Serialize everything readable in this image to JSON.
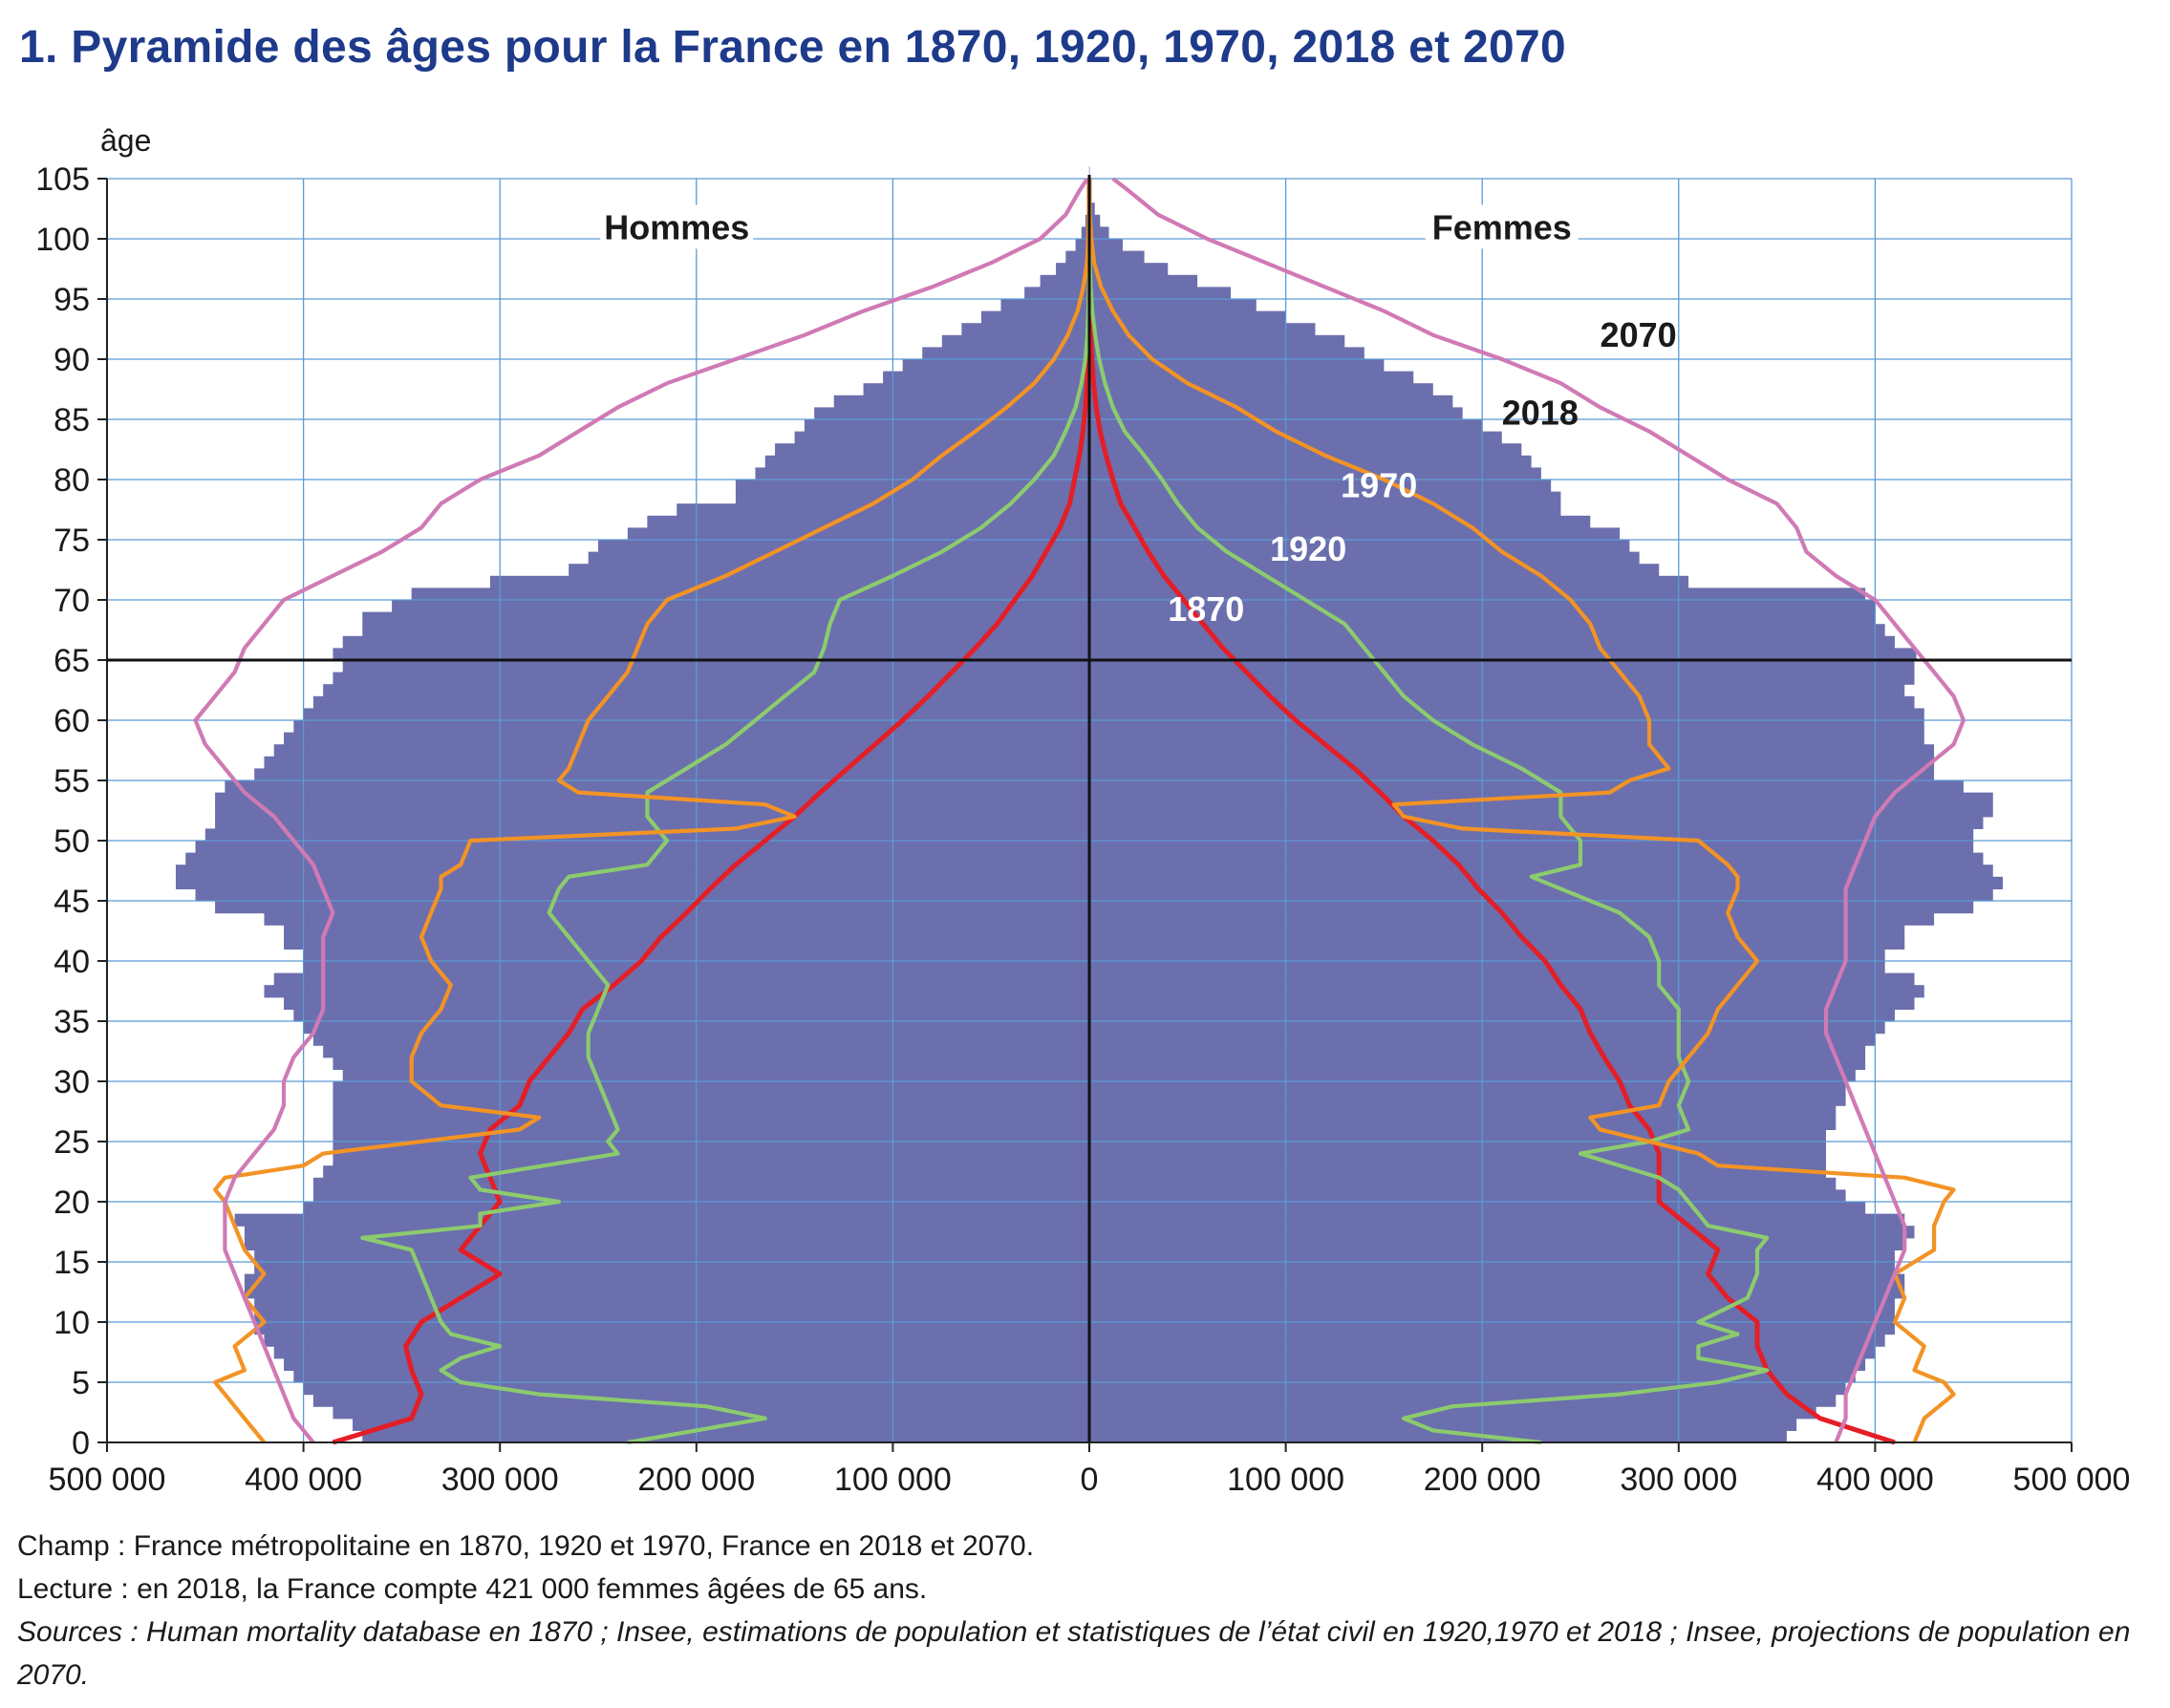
{
  "title": "1. Pyramide des âges pour la France en 1870, 1920, 1970, 2018 et 2070",
  "notes": {
    "champ": "Champ : France métropolitaine en 1870, 1920 et 1970, France en 2018 et 2070.",
    "lecture": "Lecture : en 2018, la France compte 421 000 femmes âgées de 65 ans.",
    "sources": "Sources : Human mortality database en 1870 ; Insee, estimations de population et statistiques de l’état civil en 1920,1970 et 2018 ; Insee, projections de population en 2070."
  },
  "chart_data": {
    "type": "population-pyramid",
    "ylabel": "âge",
    "left_label": "Hommes",
    "right_label": "Femmes",
    "xlim": [
      -500000,
      500000
    ],
    "ylim": [
      0,
      105
    ],
    "x_ticks": [
      -500000,
      -400000,
      -300000,
      -200000,
      -100000,
      0,
      100000,
      200000,
      300000,
      400000,
      500000
    ],
    "x_tick_labels": [
      "500 000",
      "400 000",
      "300 000",
      "200 000",
      "100 000",
      "0",
      "100 000",
      "200 000",
      "300 000",
      "400 000",
      "500 000"
    ],
    "y_ticks": [
      0,
      5,
      10,
      15,
      20,
      25,
      30,
      35,
      40,
      45,
      50,
      55,
      60,
      65,
      70,
      75,
      80,
      85,
      90,
      95,
      100,
      105
    ],
    "grid": true,
    "reference_line_age": 65,
    "colors": {
      "2018": "#6b6fad",
      "1870": "#e41e26",
      "1920": "#8ccb6e",
      "1970": "#f39325",
      "2070": "#d07ab5",
      "grid": "#5b9bd5",
      "title": "#1e3a8a"
    },
    "bars_2018": {
      "name": "2018",
      "ages": [
        0,
        1,
        2,
        3,
        4,
        5,
        6,
        7,
        8,
        9,
        10,
        11,
        12,
        13,
        14,
        15,
        16,
        17,
        18,
        19,
        20,
        21,
        22,
        23,
        24,
        25,
        26,
        27,
        28,
        29,
        30,
        31,
        32,
        33,
        34,
        35,
        36,
        37,
        38,
        39,
        40,
        41,
        42,
        43,
        44,
        45,
        46,
        47,
        48,
        49,
        50,
        51,
        52,
        53,
        54,
        55,
        56,
        57,
        58,
        59,
        60,
        61,
        62,
        63,
        64,
        65,
        66,
        67,
        68,
        69,
        70,
        71,
        72,
        73,
        74,
        75,
        76,
        77,
        78,
        79,
        80,
        81,
        82,
        83,
        84,
        85,
        86,
        87,
        88,
        89,
        90,
        91,
        92,
        93,
        94,
        95,
        96,
        97,
        98,
        99,
        100,
        101,
        102,
        103,
        104,
        105
      ],
      "men": [
        370000,
        375000,
        385000,
        395000,
        400000,
        405000,
        410000,
        415000,
        420000,
        425000,
        425000,
        425000,
        430000,
        430000,
        425000,
        425000,
        430000,
        430000,
        435000,
        400000,
        395000,
        395000,
        390000,
        385000,
        385000,
        385000,
        385000,
        385000,
        385000,
        385000,
        380000,
        385000,
        390000,
        395000,
        400000,
        405000,
        410000,
        420000,
        415000,
        400000,
        400000,
        410000,
        410000,
        420000,
        445000,
        455000,
        465000,
        465000,
        460000,
        455000,
        450000,
        445000,
        445000,
        445000,
        440000,
        425000,
        420000,
        415000,
        410000,
        405000,
        400000,
        395000,
        390000,
        385000,
        380000,
        385000,
        380000,
        370000,
        370000,
        355000,
        345000,
        305000,
        265000,
        255000,
        250000,
        235000,
        225000,
        210000,
        180000,
        180000,
        170000,
        165000,
        160000,
        150000,
        145000,
        140000,
        130000,
        115000,
        105000,
        95000,
        85000,
        75000,
        65000,
        55000,
        45000,
        33000,
        25000,
        17000,
        12000,
        7000,
        4000,
        2000,
        1200,
        600,
        300,
        100
      ],
      "women": [
        355000,
        360000,
        370000,
        380000,
        385000,
        390000,
        395000,
        400000,
        405000,
        410000,
        410000,
        410000,
        415000,
        415000,
        410000,
        410000,
        415000,
        420000,
        415000,
        395000,
        385000,
        380000,
        375000,
        375000,
        375000,
        375000,
        380000,
        380000,
        385000,
        385000,
        390000,
        395000,
        395000,
        400000,
        405000,
        410000,
        420000,
        425000,
        420000,
        405000,
        405000,
        415000,
        415000,
        430000,
        450000,
        460000,
        465000,
        460000,
        455000,
        450000,
        450000,
        455000,
        460000,
        460000,
        445000,
        430000,
        430000,
        430000,
        425000,
        425000,
        425000,
        420000,
        415000,
        420000,
        420000,
        421000,
        410000,
        405000,
        400000,
        400000,
        395000,
        305000,
        290000,
        280000,
        275000,
        270000,
        255000,
        240000,
        240000,
        235000,
        230000,
        225000,
        220000,
        210000,
        200000,
        190000,
        185000,
        175000,
        165000,
        150000,
        140000,
        130000,
        115000,
        100000,
        85000,
        72000,
        55000,
        40000,
        28000,
        17000,
        10000,
        5500,
        2800,
        1200,
        500,
        200
      ]
    },
    "series": [
      {
        "name": "1870",
        "color": "#e41e26",
        "ages": [
          0,
          2,
          4,
          6,
          8,
          10,
          12,
          14,
          16,
          18,
          20,
          22,
          24,
          26,
          28,
          30,
          32,
          34,
          36,
          38,
          40,
          42,
          44,
          46,
          48,
          50,
          52,
          54,
          56,
          58,
          60,
          62,
          64,
          66,
          68,
          70,
          72,
          74,
          76,
          78,
          80,
          82,
          84,
          86,
          88,
          90,
          92,
          94,
          96,
          98,
          100,
          102,
          104,
          105
        ],
        "men": [
          385000,
          345000,
          340000,
          345000,
          348000,
          340000,
          320000,
          300000,
          320000,
          310000,
          300000,
          305000,
          310000,
          305000,
          290000,
          285000,
          275000,
          265000,
          258000,
          242000,
          228000,
          218000,
          205000,
          193000,
          180000,
          165000,
          150000,
          137000,
          123000,
          109000,
          95000,
          82000,
          70000,
          58000,
          47000,
          38000,
          29000,
          22000,
          15000,
          10000,
          7500,
          5000,
          3200,
          2000,
          1200,
          700,
          400,
          200,
          100,
          50,
          20,
          8,
          3,
          0
        ],
        "women": [
          410000,
          372000,
          355000,
          345000,
          340000,
          340000,
          325000,
          315000,
          320000,
          305000,
          290000,
          290000,
          290000,
          285000,
          275000,
          270000,
          262000,
          255000,
          250000,
          240000,
          232000,
          220000,
          210000,
          198000,
          188000,
          175000,
          160000,
          148000,
          135000,
          120000,
          105000,
          92000,
          80000,
          68000,
          58000,
          48000,
          38000,
          30000,
          23000,
          16000,
          12000,
          8500,
          5500,
          3500,
          2200,
          1300,
          700,
          350,
          150,
          60,
          25,
          10,
          3,
          0
        ]
      },
      {
        "name": "1920",
        "color": "#8ccb6e",
        "ages": [
          0,
          1,
          2,
          3,
          4,
          5,
          6,
          7,
          8,
          9,
          10,
          12,
          14,
          16,
          17,
          18,
          19,
          20,
          21,
          22,
          24,
          25,
          26,
          28,
          30,
          32,
          34,
          36,
          38,
          40,
          42,
          44,
          46,
          47,
          48,
          50,
          52,
          54,
          56,
          58,
          60,
          62,
          64,
          66,
          68,
          70,
          72,
          74,
          76,
          78,
          80,
          82,
          84,
          86,
          88,
          90,
          92,
          94,
          96,
          98,
          100,
          102,
          104,
          105
        ],
        "men": [
          235000,
          200000,
          165000,
          195000,
          280000,
          320000,
          330000,
          320000,
          300000,
          325000,
          330000,
          335000,
          340000,
          345000,
          370000,
          310000,
          310000,
          270000,
          310000,
          315000,
          240000,
          245000,
          240000,
          245000,
          250000,
          255000,
          255000,
          250000,
          245000,
          255000,
          265000,
          275000,
          270000,
          265000,
          225000,
          215000,
          225000,
          225000,
          205000,
          185000,
          170000,
          155000,
          140000,
          135000,
          132000,
          127000,
          100000,
          75000,
          55000,
          40000,
          28000,
          18000,
          12000,
          7000,
          4000,
          2000,
          1000,
          500,
          200,
          80,
          30,
          10,
          3,
          0
        ],
        "women": [
          230000,
          175000,
          160000,
          185000,
          270000,
          320000,
          345000,
          310000,
          310000,
          330000,
          310000,
          335000,
          340000,
          340000,
          345000,
          315000,
          310000,
          305000,
          300000,
          290000,
          250000,
          285000,
          305000,
          300000,
          305000,
          300000,
          300000,
          300000,
          290000,
          290000,
          285000,
          270000,
          240000,
          225000,
          250000,
          250000,
          240000,
          240000,
          220000,
          195000,
          175000,
          160000,
          150000,
          140000,
          130000,
          110000,
          90000,
          70000,
          55000,
          45000,
          37000,
          28000,
          18000,
          12000,
          8000,
          5000,
          3000,
          1500,
          700,
          300,
          100,
          40,
          10,
          0
        ]
      },
      {
        "name": "1970",
        "color": "#f39325",
        "ages": [
          0,
          2,
          4,
          5,
          6,
          8,
          10,
          12,
          14,
          16,
          18,
          20,
          21,
          22,
          23,
          24,
          26,
          27,
          28,
          30,
          32,
          34,
          36,
          38,
          40,
          42,
          44,
          46,
          47,
          48,
          50,
          51,
          52,
          53,
          54,
          55,
          56,
          58,
          60,
          62,
          64,
          66,
          68,
          70,
          72,
          74,
          76,
          78,
          80,
          82,
          84,
          86,
          88,
          90,
          92,
          94,
          96,
          98,
          100,
          102,
          104,
          105
        ],
        "men": [
          420000,
          430000,
          440000,
          445000,
          430000,
          435000,
          420000,
          430000,
          420000,
          430000,
          435000,
          440000,
          445000,
          440000,
          400000,
          390000,
          290000,
          280000,
          330000,
          345000,
          345000,
          340000,
          330000,
          325000,
          335000,
          340000,
          335000,
          330000,
          330000,
          320000,
          315000,
          180000,
          150000,
          165000,
          260000,
          270000,
          265000,
          260000,
          255000,
          245000,
          235000,
          230000,
          225000,
          215000,
          185000,
          160000,
          135000,
          110000,
          90000,
          75000,
          58000,
          42000,
          28000,
          18000,
          11000,
          6000,
          3000,
          1200,
          500,
          150,
          40,
          0
        ],
        "women": [
          420000,
          425000,
          440000,
          435000,
          420000,
          425000,
          410000,
          415000,
          410000,
          430000,
          430000,
          435000,
          440000,
          415000,
          320000,
          310000,
          260000,
          255000,
          290000,
          295000,
          305000,
          315000,
          320000,
          330000,
          340000,
          330000,
          325000,
          330000,
          330000,
          325000,
          310000,
          190000,
          160000,
          155000,
          265000,
          275000,
          295000,
          285000,
          285000,
          280000,
          270000,
          260000,
          255000,
          245000,
          230000,
          210000,
          195000,
          175000,
          150000,
          120000,
          95000,
          75000,
          50000,
          32000,
          20000,
          12000,
          6000,
          2500,
          1000,
          300,
          80,
          0
        ]
      },
      {
        "name": "2070",
        "color": "#d07ab5",
        "ages": [
          0,
          2,
          4,
          6,
          8,
          10,
          12,
          14,
          16,
          18,
          20,
          22,
          24,
          26,
          28,
          30,
          32,
          34,
          36,
          38,
          40,
          42,
          44,
          46,
          48,
          50,
          52,
          54,
          56,
          58,
          60,
          62,
          64,
          66,
          68,
          70,
          72,
          74,
          76,
          78,
          80,
          82,
          84,
          86,
          88,
          90,
          92,
          94,
          96,
          98,
          100,
          102,
          104,
          105
        ],
        "men": [
          395000,
          405000,
          410000,
          415000,
          420000,
          425000,
          430000,
          435000,
          440000,
          440000,
          440000,
          435000,
          425000,
          415000,
          410000,
          410000,
          405000,
          395000,
          390000,
          390000,
          390000,
          390000,
          385000,
          390000,
          395000,
          405000,
          415000,
          430000,
          440000,
          450000,
          455000,
          445000,
          435000,
          430000,
          420000,
          410000,
          385000,
          360000,
          340000,
          330000,
          310000,
          280000,
          260000,
          240000,
          215000,
          180000,
          145000,
          115000,
          80000,
          50000,
          25000,
          12000,
          5000,
          1000
        ],
        "women": [
          380000,
          385000,
          385000,
          390000,
          395000,
          400000,
          405000,
          410000,
          415000,
          415000,
          410000,
          405000,
          400000,
          395000,
          390000,
          385000,
          380000,
          375000,
          375000,
          380000,
          385000,
          385000,
          385000,
          385000,
          390000,
          395000,
          400000,
          410000,
          425000,
          440000,
          445000,
          440000,
          430000,
          420000,
          410000,
          400000,
          380000,
          365000,
          360000,
          350000,
          325000,
          305000,
          285000,
          260000,
          240000,
          210000,
          175000,
          150000,
          120000,
          90000,
          60000,
          35000,
          20000,
          12000
        ]
      }
    ],
    "annotations": [
      {
        "label": "2070",
        "age": 92,
        "x": 260000,
        "color": "#1a1a1a"
      },
      {
        "label": "2018",
        "age": 85.5,
        "x": 210000,
        "color": "#1a1a1a"
      },
      {
        "label": "1970",
        "age": 79.5,
        "x": 128000,
        "color": "#ffffff"
      },
      {
        "label": "1920",
        "age": 74.2,
        "x": 92000,
        "color": "#ffffff"
      },
      {
        "label": "1870",
        "age": 69.2,
        "x": 40000,
        "color": "#ffffff"
      }
    ]
  }
}
